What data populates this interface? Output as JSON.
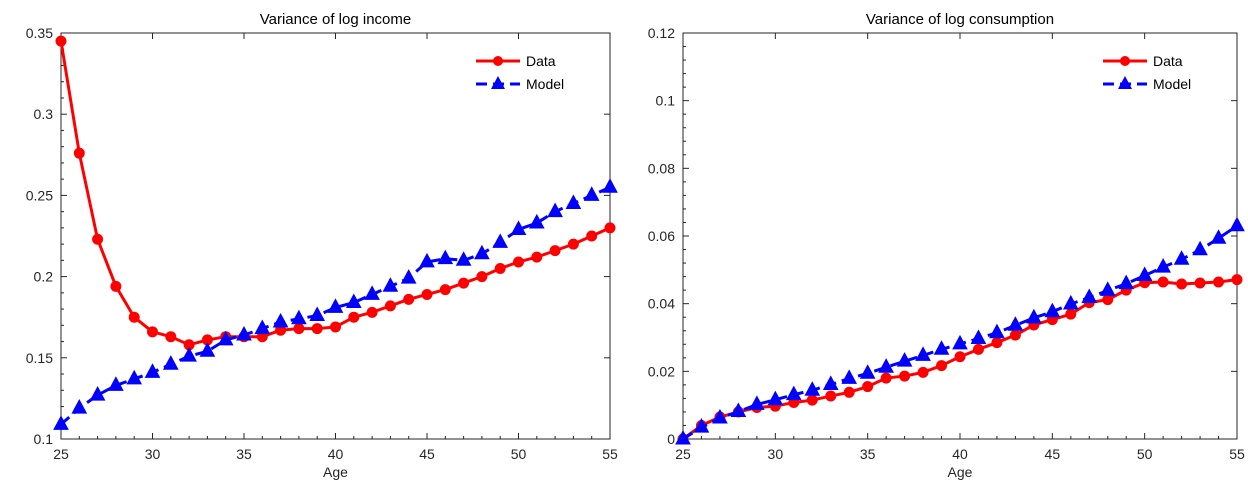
{
  "chart_data": [
    {
      "type": "line",
      "title": "Variance of log income",
      "xlabel": "Age",
      "ylabel": "",
      "xlim": [
        25,
        55
      ],
      "ylim": [
        0.1,
        0.35
      ],
      "xticks": [
        "25",
        "30",
        "35",
        "40",
        "45",
        "50",
        "55"
      ],
      "yticks": [
        "0.1",
        "0.15",
        "0.2",
        "0.25",
        "0.3",
        "0.35"
      ],
      "legend_position": "top-right",
      "grid": false,
      "x": [
        25,
        26,
        27,
        28,
        29,
        30,
        31,
        32,
        33,
        34,
        35,
        36,
        37,
        38,
        39,
        40,
        41,
        42,
        43,
        44,
        45,
        46,
        47,
        48,
        49,
        50,
        51,
        52,
        53,
        54,
        55
      ],
      "series": [
        {
          "name": "Data",
          "color": "#ff0000",
          "marker": "circle",
          "line": "solid",
          "values": [
            0.345,
            0.276,
            0.223,
            0.194,
            0.175,
            0.166,
            0.163,
            0.158,
            0.161,
            0.163,
            0.163,
            0.163,
            0.167,
            0.168,
            0.168,
            0.169,
            0.175,
            0.178,
            0.182,
            0.186,
            0.189,
            0.192,
            0.196,
            0.2,
            0.205,
            0.209,
            0.212,
            0.216,
            0.22,
            0.225,
            0.23
          ]
        },
        {
          "name": "Model",
          "color": "#0000ff",
          "marker": "triangle",
          "line": "dashed",
          "values": [
            0.109,
            0.119,
            0.127,
            0.133,
            0.137,
            0.141,
            0.146,
            0.151,
            0.154,
            0.161,
            0.164,
            0.168,
            0.172,
            0.174,
            0.176,
            0.181,
            0.184,
            0.189,
            0.194,
            0.199,
            0.209,
            0.211,
            0.21,
            0.214,
            0.221,
            0.229,
            0.233,
            0.24,
            0.245,
            0.25,
            0.255
          ]
        }
      ]
    },
    {
      "type": "line",
      "title": "Variance of log consumption",
      "xlabel": "Age",
      "ylabel": "",
      "xlim": [
        25,
        55
      ],
      "ylim": [
        0,
        0.12
      ],
      "xticks": [
        "25",
        "30",
        "35",
        "40",
        "45",
        "50",
        "55"
      ],
      "yticks": [
        "0",
        "0.02",
        "0.04",
        "0.06",
        "0.08",
        "0.1",
        "0.12"
      ],
      "legend_position": "top-right",
      "grid": false,
      "x": [
        25,
        26,
        27,
        28,
        29,
        30,
        31,
        32,
        33,
        34,
        35,
        36,
        37,
        38,
        39,
        40,
        41,
        42,
        43,
        44,
        45,
        46,
        47,
        48,
        49,
        50,
        51,
        52,
        53,
        54,
        55
      ],
      "series": [
        {
          "name": "Data",
          "color": "#ff0000",
          "marker": "circle",
          "line": "solid",
          "values": [
            0.0,
            0.004,
            0.0065,
            0.008,
            0.0093,
            0.0097,
            0.0108,
            0.0115,
            0.0127,
            0.0138,
            0.0155,
            0.018,
            0.0186,
            0.0197,
            0.0217,
            0.0243,
            0.0265,
            0.0285,
            0.0307,
            0.0337,
            0.0353,
            0.0369,
            0.0403,
            0.0412,
            0.044,
            0.0462,
            0.0464,
            0.0458,
            0.0461,
            0.0464,
            0.0471
          ]
        },
        {
          "name": "Model",
          "color": "#0000ff",
          "marker": "triangle",
          "line": "dashed",
          "values": [
            0.0,
            0.0035,
            0.0062,
            0.0081,
            0.0102,
            0.0116,
            0.0131,
            0.0144,
            0.0161,
            0.0179,
            0.0194,
            0.0212,
            0.023,
            0.0247,
            0.0265,
            0.0281,
            0.0297,
            0.0314,
            0.0336,
            0.0358,
            0.0376,
            0.0399,
            0.0418,
            0.0439,
            0.0459,
            0.0483,
            0.0508,
            0.0531,
            0.0559,
            0.0593,
            0.063
          ]
        }
      ]
    }
  ]
}
